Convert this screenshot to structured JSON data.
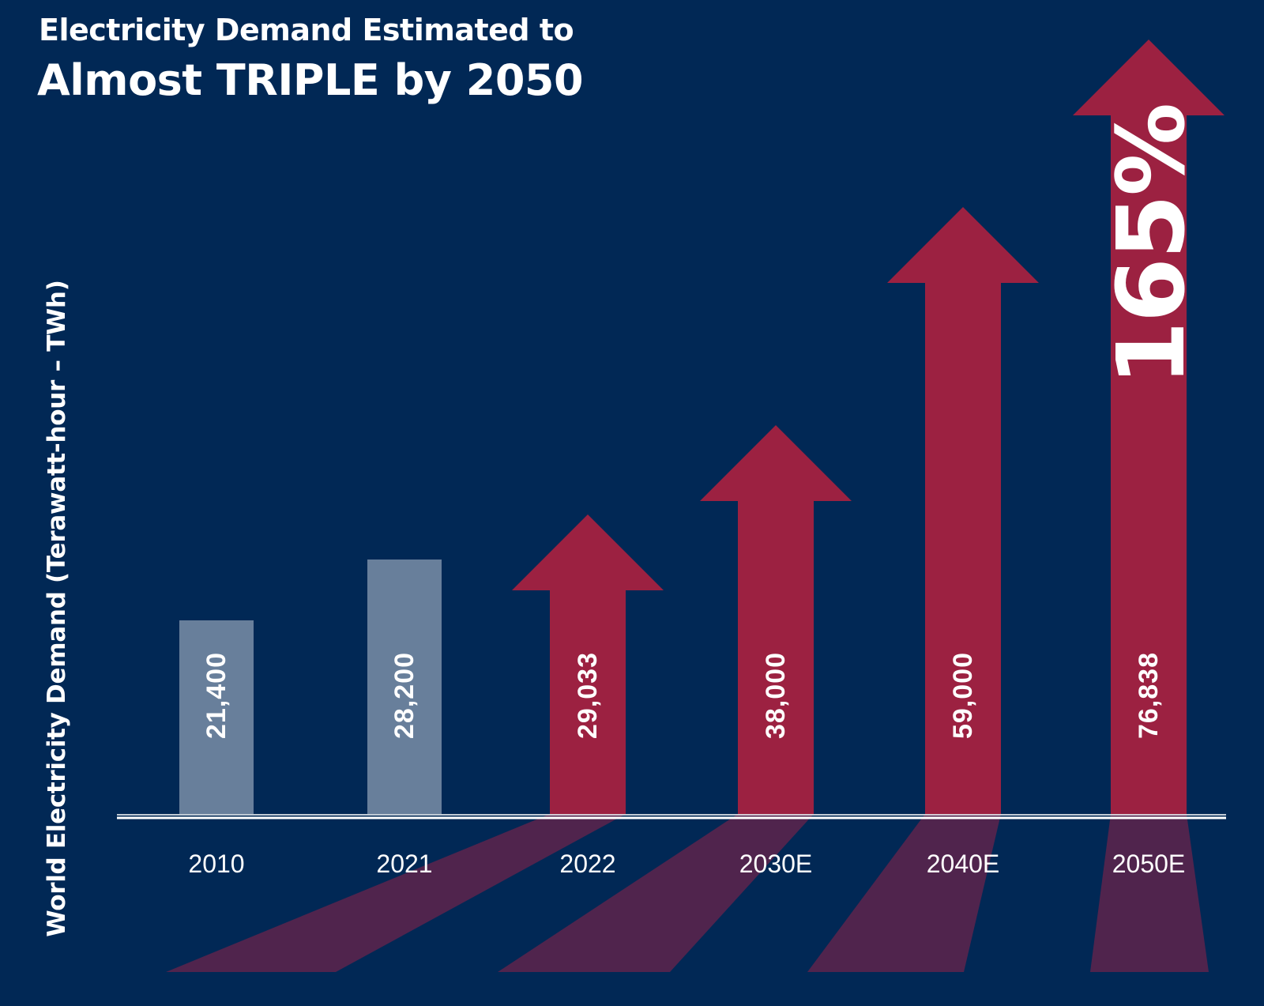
{
  "header": {
    "title_line1": "Electricity Demand Estimated to",
    "title_line2": "Almost TRIPLE by 2050"
  },
  "colors": {
    "background": "#012855",
    "historical_bar": "#687f9b",
    "projection_arrow": "#9c2141",
    "shadow": "#50244d",
    "axis_line": "#ffffff",
    "text": "#ffffff"
  },
  "chart_data": {
    "type": "bar",
    "title": "Electricity Demand Estimated to Almost TRIPLE by 2050",
    "xlabel": "",
    "ylabel": "World Electricity Demand (Terawatt-hour – TWh)",
    "categories": [
      "2010",
      "2021",
      "2022",
      "2030E",
      "2040E",
      "2050E"
    ],
    "values": [
      21400,
      28200,
      29033,
      38000,
      59000,
      76838
    ],
    "value_labels": [
      "21,400",
      "28,200",
      "29,033",
      "38,000",
      "59,000",
      "76,838"
    ],
    "mark_styles": [
      "bar",
      "bar",
      "arrow",
      "arrow",
      "arrow",
      "arrow"
    ],
    "grid": false,
    "legend": "none",
    "annotations": [
      {
        "text": "165%",
        "target": "2050E",
        "orientation": "vertical"
      }
    ]
  }
}
